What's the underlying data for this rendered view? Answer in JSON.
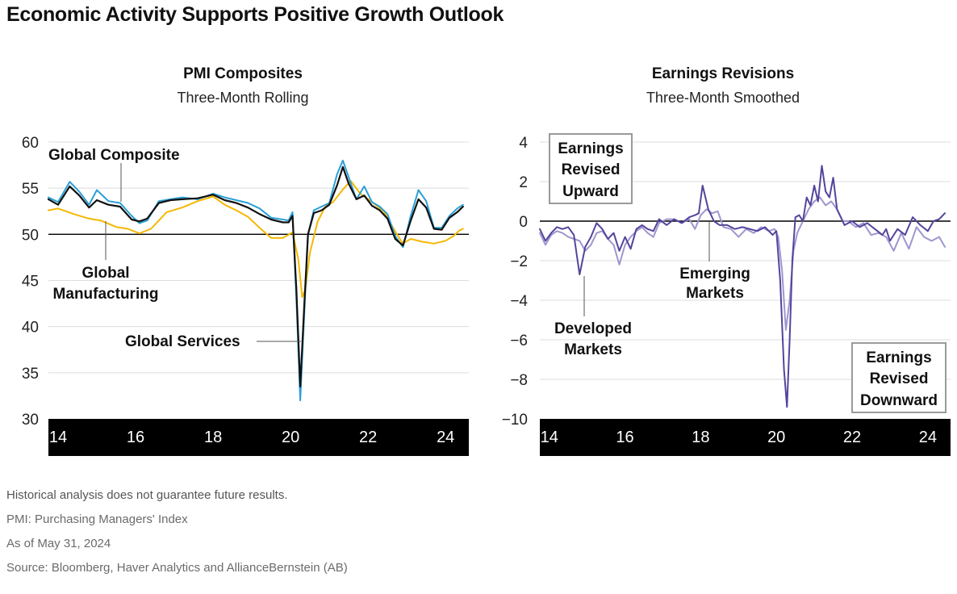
{
  "headline": "Economic Activity Supports Positive Growth Outlook",
  "footnotes": [
    "Historical analysis does not guarantee future results.",
    "PMI: Purchasing Managers' Index",
    "As of May 31, 2024",
    "Source: Bloomberg, Haver Analytics and AllianceBernstein (AB)"
  ],
  "colors": {
    "global_composite": "#111111",
    "global_manufacturing": "#f5b800",
    "global_services": "#2a9fd6",
    "developed_markets": "#55449c",
    "emerging_markets": "#9f95cf",
    "axis_band": "#000000"
  },
  "chart_data": [
    {
      "type": "line",
      "title": "PMI Composites",
      "subtitle": "Three-Month Rolling",
      "y_ticks": [
        "60",
        "55",
        "50",
        "45",
        "40",
        "35",
        "30"
      ],
      "ylim": [
        30,
        60
      ],
      "x_ticks": [
        "14",
        "16",
        "18",
        "20",
        "22",
        "24"
      ],
      "xlim": [
        2013.75,
        2024.6
      ],
      "reference_line": 50,
      "grid": true,
      "labels": {
        "composite": "Global Composite",
        "manufacturing_line1": "Global",
        "manufacturing_line2": "Manufacturing",
        "services": "Global Services"
      },
      "series": [
        {
          "name": "Global Composite",
          "color": "#111111",
          "x": [
            2013.75,
            2014.0,
            2014.3,
            2014.55,
            2014.8,
            2015.0,
            2015.3,
            2015.6,
            2015.9,
            2016.1,
            2016.3,
            2016.6,
            2016.9,
            2017.2,
            2017.6,
            2018.0,
            2018.3,
            2018.6,
            2018.9,
            2019.2,
            2019.5,
            2019.8,
            2019.95,
            2020.05,
            2020.15,
            2020.25,
            2020.35,
            2020.45,
            2020.6,
            2020.8,
            2021.0,
            2021.2,
            2021.35,
            2021.5,
            2021.7,
            2021.9,
            2022.1,
            2022.3,
            2022.5,
            2022.7,
            2022.9,
            2023.1,
            2023.3,
            2023.5,
            2023.7,
            2023.9,
            2024.1,
            2024.3,
            2024.45
          ],
          "y": [
            53.8,
            53.2,
            55.2,
            54.2,
            52.9,
            53.7,
            53.2,
            53.0,
            51.6,
            51.4,
            51.7,
            53.4,
            53.7,
            53.8,
            53.9,
            54.3,
            53.7,
            53.4,
            52.9,
            52.2,
            51.6,
            51.3,
            51.3,
            52.0,
            44.0,
            33.5,
            42.0,
            50.0,
            52.3,
            52.6,
            53.2,
            55.3,
            57.3,
            55.5,
            53.8,
            54.2,
            53.1,
            52.6,
            51.7,
            49.5,
            48.8,
            51.5,
            53.8,
            52.9,
            50.6,
            50.5,
            51.8,
            52.4,
            53.0
          ]
        },
        {
          "name": "Global Manufacturing",
          "color": "#f5b800",
          "x": [
            2013.75,
            2014.0,
            2014.4,
            2014.8,
            2015.1,
            2015.5,
            2015.8,
            2016.1,
            2016.4,
            2016.8,
            2017.2,
            2017.6,
            2018.0,
            2018.3,
            2018.6,
            2018.9,
            2019.2,
            2019.5,
            2019.8,
            2020.05,
            2020.2,
            2020.3,
            2020.38,
            2020.5,
            2020.7,
            2020.9,
            2021.1,
            2021.3,
            2021.55,
            2021.8,
            2022.1,
            2022.4,
            2022.7,
            2022.9,
            2023.1,
            2023.4,
            2023.7,
            2024.0,
            2024.2,
            2024.35,
            2024.45
          ],
          "y": [
            52.6,
            52.8,
            52.2,
            51.7,
            51.5,
            50.8,
            50.6,
            50.1,
            50.6,
            52.4,
            52.9,
            53.6,
            54.1,
            53.2,
            52.6,
            51.9,
            50.7,
            49.6,
            49.6,
            50.2,
            47.3,
            43.2,
            44.0,
            48.0,
            51.4,
            53.0,
            53.5,
            54.6,
            55.8,
            54.4,
            53.5,
            52.5,
            50.3,
            49.0,
            49.5,
            49.2,
            49.0,
            49.3,
            49.8,
            50.4,
            50.6
          ]
        },
        {
          "name": "Global Services",
          "color": "#2a9fd6",
          "x": [
            2013.75,
            2014.0,
            2014.3,
            2014.55,
            2014.8,
            2015.0,
            2015.3,
            2015.6,
            2015.9,
            2016.1,
            2016.3,
            2016.6,
            2016.9,
            2017.2,
            2017.6,
            2018.0,
            2018.3,
            2018.6,
            2018.9,
            2019.2,
            2019.5,
            2019.8,
            2019.95,
            2020.05,
            2020.15,
            2020.25,
            2020.35,
            2020.45,
            2020.6,
            2020.8,
            2021.0,
            2021.2,
            2021.35,
            2021.5,
            2021.7,
            2021.9,
            2022.1,
            2022.3,
            2022.5,
            2022.7,
            2022.9,
            2023.1,
            2023.3,
            2023.5,
            2023.7,
            2023.9,
            2024.1,
            2024.3,
            2024.45
          ],
          "y": [
            54.0,
            53.5,
            55.7,
            54.6,
            53.2,
            54.8,
            53.6,
            53.4,
            52.0,
            51.2,
            51.5,
            53.6,
            53.8,
            54.0,
            53.8,
            54.4,
            54.0,
            53.7,
            53.4,
            52.8,
            51.8,
            51.6,
            51.5,
            52.4,
            43.0,
            32.0,
            41.0,
            50.0,
            52.6,
            53.0,
            53.4,
            56.5,
            58.0,
            56.2,
            53.8,
            55.2,
            53.5,
            53.0,
            52.2,
            49.8,
            48.6,
            52.0,
            54.8,
            53.6,
            50.7,
            50.7,
            52.0,
            52.8,
            53.2
          ]
        }
      ]
    },
    {
      "type": "line",
      "title": "Earnings Revisions",
      "subtitle": "Three-Month Smoothed",
      "y_ticks": [
        "4",
        "2",
        "0",
        "−2",
        "−4",
        "−6",
        "−8",
        "−10"
      ],
      "ylim": [
        -10,
        4
      ],
      "x_ticks": [
        "14",
        "16",
        "18",
        "20",
        "22",
        "24"
      ],
      "xlim": [
        2013.75,
        2024.6
      ],
      "reference_line": 0,
      "grid": true,
      "labels": {
        "upward_line1": "Earnings",
        "upward_line2": "Revised",
        "upward_line3": "Upward",
        "downward_line1": "Earnings",
        "downward_line2": "Revised",
        "downward_line3": "Downward",
        "em_line1": "Emerging",
        "em_line2": "Markets",
        "dm_line1": "Developed",
        "dm_line2": "Markets"
      },
      "series": [
        {
          "name": "Developed Markets",
          "color": "#55449c",
          "x": [
            2013.75,
            2013.9,
            2014.05,
            2014.2,
            2014.35,
            2014.5,
            2014.65,
            2014.8,
            2014.95,
            2015.1,
            2015.25,
            2015.4,
            2015.55,
            2015.7,
            2015.85,
            2016.0,
            2016.15,
            2016.3,
            2016.45,
            2016.6,
            2016.75,
            2016.9,
            2017.1,
            2017.3,
            2017.5,
            2017.7,
            2017.85,
            2017.95,
            2018.05,
            2018.2,
            2018.35,
            2018.5,
            2018.7,
            2018.9,
            2019.1,
            2019.3,
            2019.5,
            2019.7,
            2019.9,
            2020.0,
            2020.1,
            2020.2,
            2020.28,
            2020.35,
            2020.42,
            2020.5,
            2020.6,
            2020.7,
            2020.8,
            2020.9,
            2021.0,
            2021.1,
            2021.2,
            2021.3,
            2021.4,
            2021.5,
            2021.6,
            2021.7,
            2021.8,
            2021.9,
            2022.0,
            2022.2,
            2022.4,
            2022.6,
            2022.8,
            2022.9,
            2023.0,
            2023.2,
            2023.4,
            2023.6,
            2023.8,
            2024.0,
            2024.15,
            2024.3,
            2024.45
          ],
          "y": [
            -0.4,
            -1.0,
            -0.6,
            -0.3,
            -0.4,
            -0.3,
            -0.7,
            -2.7,
            -1.3,
            -0.8,
            -0.1,
            -0.4,
            -0.9,
            -0.6,
            -1.5,
            -0.8,
            -1.4,
            -0.4,
            -0.2,
            -0.4,
            -0.5,
            0.1,
            -0.2,
            0.1,
            -0.1,
            0.2,
            0.3,
            0.4,
            1.8,
            0.6,
            0.0,
            -0.2,
            -0.2,
            -0.4,
            -0.3,
            -0.4,
            -0.5,
            -0.3,
            -0.7,
            -0.5,
            -3.0,
            -7.5,
            -9.4,
            -6.0,
            -2.0,
            0.2,
            0.3,
            0.0,
            1.2,
            0.8,
            1.8,
            1.0,
            2.8,
            1.5,
            1.2,
            2.2,
            0.6,
            0.2,
            -0.2,
            -0.1,
            0.0,
            -0.3,
            -0.1,
            -0.4,
            -0.7,
            -0.4,
            -1.0,
            -0.4,
            -0.7,
            0.2,
            -0.2,
            -0.5,
            0.0,
            0.1,
            0.4
          ]
        },
        {
          "name": "Emerging Markets",
          "color": "#9f95cf",
          "x": [
            2013.75,
            2013.9,
            2014.05,
            2014.2,
            2014.35,
            2014.5,
            2014.65,
            2014.8,
            2014.95,
            2015.1,
            2015.25,
            2015.4,
            2015.55,
            2015.7,
            2015.85,
            2016.0,
            2016.15,
            2016.3,
            2016.45,
            2016.6,
            2016.75,
            2016.9,
            2017.1,
            2017.3,
            2017.5,
            2017.7,
            2017.85,
            2018.0,
            2018.15,
            2018.3,
            2018.45,
            2018.6,
            2018.8,
            2019.0,
            2019.2,
            2019.4,
            2019.6,
            2019.8,
            2019.95,
            2020.05,
            2020.15,
            2020.25,
            2020.35,
            2020.45,
            2020.55,
            2020.7,
            2020.85,
            2021.0,
            2021.15,
            2021.3,
            2021.45,
            2021.6,
            2021.75,
            2021.9,
            2022.1,
            2022.3,
            2022.5,
            2022.7,
            2022.9,
            2023.1,
            2023.3,
            2023.5,
            2023.7,
            2023.9,
            2024.1,
            2024.3,
            2024.45
          ],
          "y": [
            -0.6,
            -1.2,
            -0.7,
            -0.5,
            -0.6,
            -0.8,
            -0.9,
            -1.0,
            -1.5,
            -1.2,
            -0.6,
            -0.5,
            -0.9,
            -1.2,
            -2.2,
            -1.2,
            -0.8,
            -0.5,
            -0.3,
            -0.6,
            -0.8,
            -0.1,
            0.1,
            0.1,
            -0.1,
            0.1,
            -0.4,
            0.3,
            0.6,
            0.4,
            0.5,
            -0.3,
            -0.4,
            -0.8,
            -0.4,
            -0.6,
            -0.3,
            -0.5,
            -0.4,
            -0.8,
            -2.5,
            -5.5,
            -4.0,
            -1.5,
            -0.6,
            0.0,
            0.6,
            1.0,
            1.2,
            0.8,
            1.0,
            0.6,
            0.0,
            0.0,
            -0.3,
            -0.1,
            -0.7,
            -0.6,
            -0.8,
            -1.5,
            -0.6,
            -1.4,
            -0.3,
            -0.8,
            -1.0,
            -0.8,
            -1.3
          ]
        }
      ]
    }
  ]
}
